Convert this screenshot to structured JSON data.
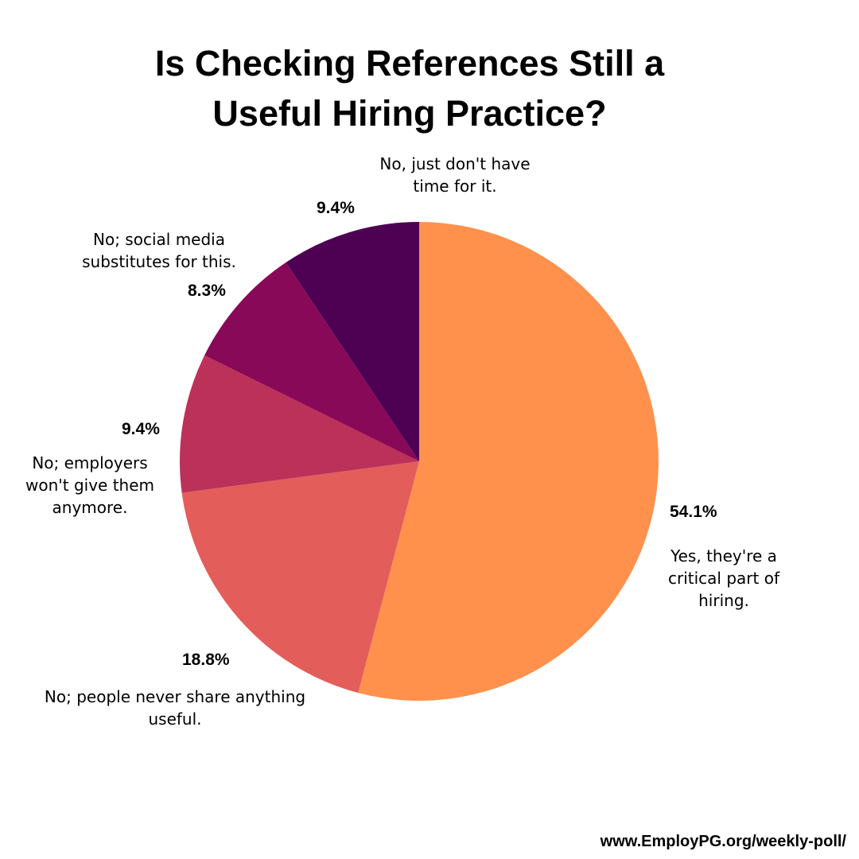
{
  "chart_data": {
    "type": "pie",
    "title_lines": [
      "Is Checking References Still a",
      "Useful Hiring Practice?"
    ],
    "start": "12 o'clock, clockwise",
    "slices": [
      {
        "value": 54.1,
        "pct_label": "54.1%",
        "label_lines": [
          "Yes, they're a",
          "critical part of",
          "hiring."
        ],
        "color": "#FF914D"
      },
      {
        "value": 18.8,
        "pct_label": "18.8%",
        "label_lines": [
          "No; people never share anything",
          "useful."
        ],
        "color": "#E35D5B"
      },
      {
        "value": 9.4,
        "pct_label": "9.4%",
        "label_lines": [
          "No; employers",
          "won't give them",
          "anymore."
        ],
        "color": "#BC3159"
      },
      {
        "value": 8.3,
        "pct_label": "8.3%",
        "label_lines": [
          "No; social media",
          "substitutes for this."
        ],
        "color": "#880957"
      },
      {
        "value": 9.4,
        "pct_label": "9.4%",
        "label_lines": [
          "No, just don't have",
          "time for it."
        ],
        "color": "#4E0053"
      }
    ]
  },
  "footer": {
    "source": "www.EmployPG.org/weekly-poll/"
  }
}
